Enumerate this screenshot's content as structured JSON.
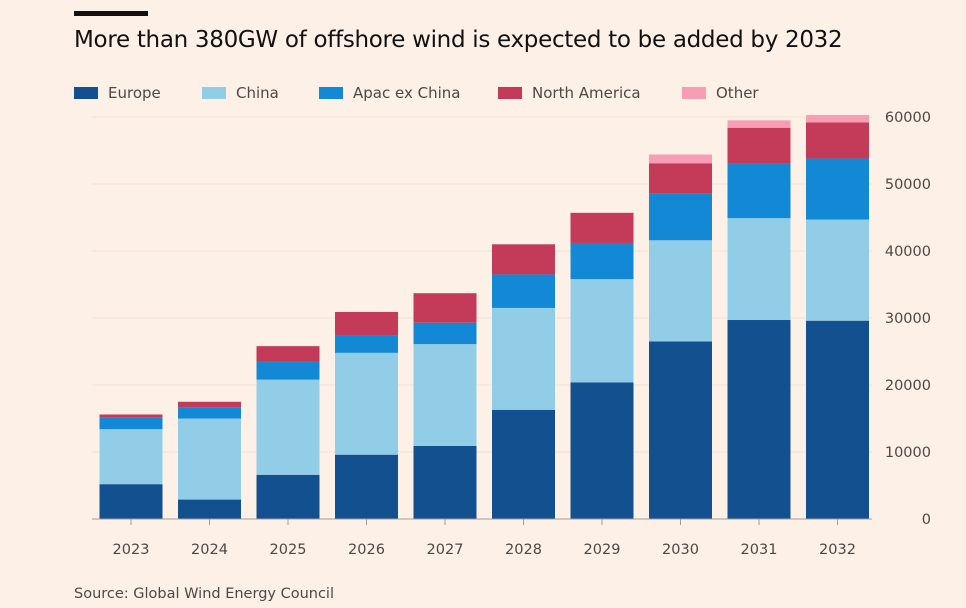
{
  "header": {
    "title": "More than 380GW of offshore wind is expected to be added by 2032"
  },
  "footer": {
    "source": "Source: Global Wind Energy Council"
  },
  "chart_data": {
    "type": "bar",
    "stacked": true,
    "title": "More than 380GW of offshore wind is expected to be added by 2032",
    "xlabel": "",
    "ylabel": "",
    "ylim": [
      0,
      60000
    ],
    "yticks": [
      0,
      10000,
      20000,
      30000,
      40000,
      50000,
      60000
    ],
    "y_axis_position": "right",
    "grid": true,
    "legend_position": "top",
    "categories": [
      "2023",
      "2024",
      "2025",
      "2026",
      "2027",
      "2028",
      "2029",
      "2030",
      "2031",
      "2032"
    ],
    "series": [
      {
        "name": "Europe",
        "color": "#13508f",
        "values": [
          5200,
          2900,
          6600,
          9600,
          10900,
          16300,
          20400,
          26500,
          29700,
          29600
        ]
      },
      {
        "name": "China",
        "color": "#92cde8",
        "values": [
          8200,
          12100,
          14200,
          15200,
          15200,
          15200,
          15400,
          15100,
          15200,
          15100
        ]
      },
      {
        "name": "Apac ex China",
        "color": "#1389d6",
        "values": [
          1700,
          1600,
          2700,
          2600,
          3200,
          5000,
          5400,
          7000,
          8100,
          9100
        ]
      },
      {
        "name": "North America",
        "color": "#c43b5a",
        "values": [
          500,
          900,
          2300,
          3500,
          4400,
          4500,
          4500,
          4500,
          5400,
          5400
        ]
      },
      {
        "name": "Other",
        "color": "#f79db4",
        "values": [
          0,
          0,
          0,
          0,
          0,
          0,
          0,
          1300,
          1100,
          1100
        ]
      }
    ]
  }
}
